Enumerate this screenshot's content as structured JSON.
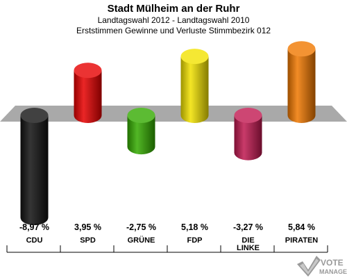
{
  "header": {
    "title": "Stadt Mülheim an der Ruhr",
    "subtitle1": "Landtagswahl 2012 - Landtagswahl 2010",
    "subtitle2": "Erststimmen Gewinne und Verluste Stimmbezirk 012"
  },
  "chart_data": {
    "type": "bar",
    "title": "Stadt Mülheim an der Ruhr",
    "subtitle": "Landtagswahl 2012 - Landtagswahl 2010 / Erststimmen Gewinne und Verluste Stimmbezirk 012",
    "categories": [
      "CDU",
      "SPD",
      "GRÜNE",
      "FDP",
      "DIE LINKE",
      "PIRATEN"
    ],
    "values": [
      -8.97,
      3.95,
      -2.75,
      5.18,
      -3.27,
      5.84
    ],
    "value_labels": [
      "-8,97 %",
      "3,95 %",
      "-2,75 %",
      "5,18 %",
      "-3,27 %",
      "5,84 %"
    ],
    "colors": [
      "#111111",
      "#e60000",
      "#33aa00",
      "#f2e200",
      "#c01850",
      "#f07800"
    ],
    "grid": false,
    "legend": "none"
  },
  "logo": {
    "text": "VOTE",
    "subtext": "MANAGER"
  }
}
